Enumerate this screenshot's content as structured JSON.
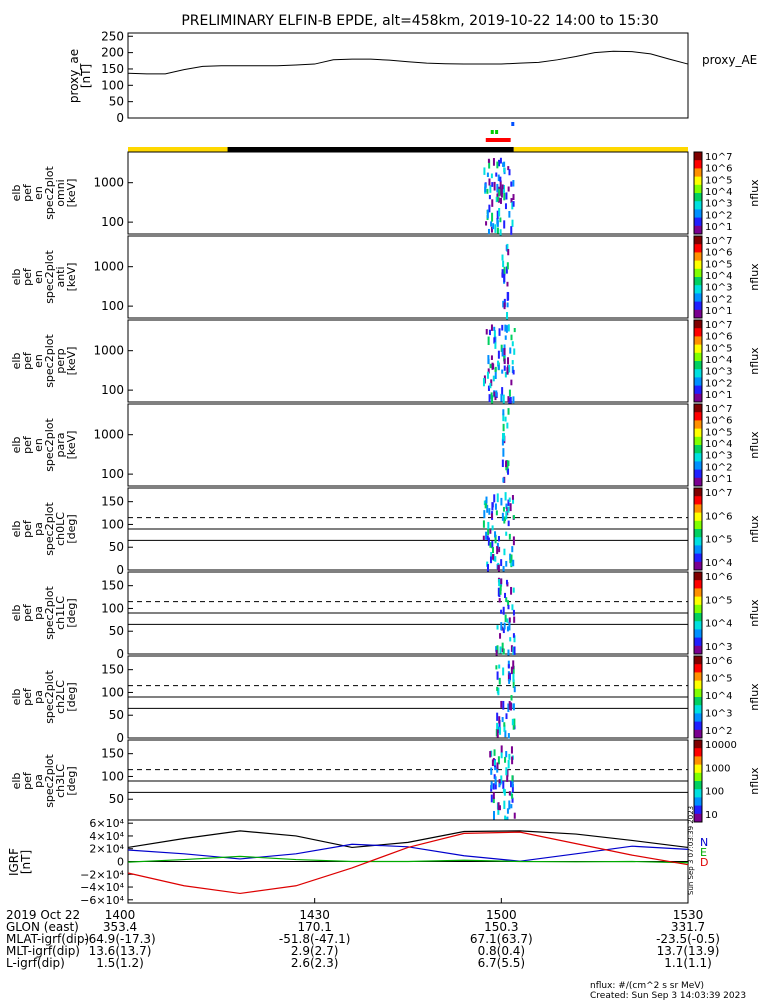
{
  "title": "PRELIMINARY ELFIN-B EPDE, alt=458km, 2019-10-22 14:00 to 15:30",
  "colors": {
    "sci_zone_yellow": "#ffd800",
    "sci_zone_black": "#000000",
    "red": "#ff0000",
    "green": "#00cc00",
    "blue": "#0050ff",
    "bfield_black": "#000000",
    "bfield_blue": "#0000cc",
    "bfield_green": "#00aa00",
    "bfield_red": "#dd0000"
  },
  "x_axis": {
    "ticks": [
      "1400",
      "1430",
      "1500",
      "1530"
    ],
    "tick_minutes": [
      0,
      30,
      60,
      90
    ],
    "range_minutes": [
      0,
      90
    ]
  },
  "footer_rows": [
    {
      "label": "2019 Oct 22",
      "values": [
        "1400",
        "1430",
        "1500",
        "1530"
      ]
    },
    {
      "label": "GLON (east)",
      "values": [
        "353.4",
        "170.1",
        "150.3",
        "331.7"
      ]
    },
    {
      "label": "MLAT-igrf(dip)",
      "values": [
        "-64.9(-17.3)",
        "-51.8(-47.1)",
        "67.1(63.7)",
        "-23.5(-0.5)"
      ]
    },
    {
      "label": "MLT-igrf(dip)",
      "values": [
        "13.6(13.7)",
        "2.9(2.7)",
        "0.8(0.4)",
        "13.7(13.9)"
      ]
    },
    {
      "label": "L-igrf(dip)",
      "values": [
        "1.5(1.2)",
        "2.6(2.3)",
        "6.7(5.5)",
        "1.1(1.1)"
      ]
    }
  ],
  "footnote": {
    "units": "nflux: #/(cm^2 s sr MeV)",
    "created": "Created: Sun Sep  3 14:03:39 2023",
    "side_stamp": "Sun Sep  3 07:03:39 2023"
  },
  "chart_data": [
    {
      "type": "line",
      "panel": "proxy_ae",
      "ylabel_lines": [
        "proxy_ae",
        "[nT]"
      ],
      "legend": "proxy_AE",
      "ylim": [
        0,
        260
      ],
      "yticks": [
        "250",
        "200",
        "150",
        "100",
        "50",
        "0"
      ],
      "ytick_values": [
        250,
        200,
        150,
        100,
        50,
        0
      ],
      "x": [
        0,
        3,
        6,
        9,
        12,
        15,
        18,
        21,
        24,
        27,
        30,
        33,
        36,
        39,
        42,
        45,
        48,
        51,
        54,
        57,
        60,
        63,
        66,
        69,
        72,
        75,
        78,
        81,
        84,
        87,
        90
      ],
      "values": [
        137,
        135,
        135,
        148,
        158,
        160,
        160,
        160,
        160,
        162,
        165,
        178,
        180,
        180,
        177,
        172,
        168,
        166,
        165,
        165,
        165,
        168,
        170,
        178,
        188,
        200,
        204,
        203,
        196,
        180,
        165
      ]
    },
    {
      "type": "spectrogram",
      "panel": "en_spec_omni",
      "ylabel_lines": [
        "elb",
        "pef",
        "en",
        "spec2plot",
        "omni",
        "[keV]"
      ],
      "yscale": "log",
      "ylim": [
        50,
        6000
      ],
      "yticks": [
        "1000",
        "100"
      ],
      "colorbar": {
        "label": "nflux",
        "ticks": [
          "10^7",
          "10^6",
          "10^5",
          "10^4",
          "10^3",
          "10^2",
          "10^1"
        ]
      },
      "activity_minutes": [
        57,
        62
      ]
    },
    {
      "type": "spectrogram",
      "panel": "en_spec_anti",
      "ylabel_lines": [
        "elb",
        "pef",
        "en",
        "spec2plot",
        "anti",
        "[keV]"
      ],
      "yscale": "log",
      "ylim": [
        50,
        6000
      ],
      "yticks": [
        "1000",
        "100"
      ],
      "colorbar": {
        "label": "nflux",
        "ticks": [
          "10^7",
          "10^6",
          "10^5",
          "10^4",
          "10^3",
          "10^2",
          "10^1"
        ]
      },
      "activity_minutes": [
        60,
        61
      ]
    },
    {
      "type": "spectrogram",
      "panel": "en_spec_perp",
      "ylabel_lines": [
        "elb",
        "pef",
        "en",
        "spec2plot",
        "perp",
        "[keV]"
      ],
      "yscale": "log",
      "ylim": [
        50,
        6000
      ],
      "yticks": [
        "1000",
        "100"
      ],
      "colorbar": {
        "label": "nflux",
        "ticks": [
          "10^7",
          "10^6",
          "10^5",
          "10^4",
          "10^3",
          "10^2",
          "10^1"
        ]
      },
      "activity_minutes": [
        57,
        62
      ]
    },
    {
      "type": "spectrogram",
      "panel": "en_spec_para",
      "ylabel_lines": [
        "elb",
        "pef",
        "en",
        "spec2plot",
        "para",
        "[keV]"
      ],
      "yscale": "log",
      "ylim": [
        50,
        6000
      ],
      "yticks": [
        "1000",
        "100"
      ],
      "colorbar": {
        "label": "nflux",
        "ticks": [
          "10^7",
          "10^6",
          "10^5",
          "10^4",
          "10^3",
          "10^2",
          "10^1"
        ]
      },
      "activity_minutes": [
        60,
        61
      ]
    },
    {
      "type": "spectrogram",
      "panel": "pa_spec_ch0",
      "ylabel_lines": [
        "elb",
        "pef",
        "pa",
        "spec2plot",
        "ch0LC",
        "[deg]"
      ],
      "ylim": [
        0,
        180
      ],
      "yticks": [
        "150",
        "100",
        "50",
        "0"
      ],
      "ref_lines_deg": {
        "dashed": 115,
        "solid": [
          90,
          65
        ]
      },
      "colorbar": {
        "label": "nflux",
        "ticks": [
          "10^7",
          "10^6",
          "10^5",
          "10^4"
        ]
      },
      "activity_minutes": [
        57,
        62
      ]
    },
    {
      "type": "spectrogram",
      "panel": "pa_spec_ch1",
      "ylabel_lines": [
        "elb",
        "pef",
        "pa",
        "spec2plot",
        "ch1LC",
        "[deg]"
      ],
      "ylim": [
        0,
        180
      ],
      "yticks": [
        "150",
        "100",
        "50",
        "0"
      ],
      "ref_lines_deg": {
        "dashed": 115,
        "solid": [
          90,
          65
        ]
      },
      "colorbar": {
        "label": "nflux",
        "ticks": [
          "10^6",
          "10^5",
          "10^4",
          "10^3"
        ]
      },
      "activity_minutes": [
        59,
        62
      ]
    },
    {
      "type": "spectrogram",
      "panel": "pa_spec_ch2",
      "ylabel_lines": [
        "elb",
        "pef",
        "pa",
        "spec2plot",
        "ch2LC",
        "[deg]"
      ],
      "ylim": [
        0,
        180
      ],
      "yticks": [
        "150",
        "100",
        "50",
        "0"
      ],
      "ref_lines_deg": {
        "dashed": 115,
        "solid": [
          90,
          65
        ]
      },
      "colorbar": {
        "label": "nflux",
        "ticks": [
          "10^6",
          "10^5",
          "10^4",
          "10^3",
          "10^2"
        ]
      },
      "activity_minutes": [
        59,
        62
      ]
    },
    {
      "type": "spectrogram",
      "panel": "pa_spec_ch3",
      "ylabel_lines": [
        "elb",
        "pef",
        "pa",
        "spec2plot",
        "ch3LC",
        "[deg]"
      ],
      "ylim": [
        0,
        180
      ],
      "yticks": [
        "150",
        "100",
        "50"
      ],
      "ref_lines_deg": {
        "dashed": 115,
        "solid": [
          90,
          65
        ]
      },
      "colorbar": {
        "label": "nflux",
        "ticks": [
          "10000",
          "1000",
          "100",
          "10"
        ]
      },
      "activity_minutes": [
        58,
        62
      ]
    },
    {
      "type": "line",
      "panel": "igrf_field",
      "ylabel_lines": [
        "IGRF",
        "[nT]"
      ],
      "ylim": [
        -65000,
        65000
      ],
      "yticks": [
        "6×10⁴",
        "4×10⁴",
        "2×10⁴",
        "0",
        "−2×10⁴",
        "−4×10⁴",
        "−6×10⁴"
      ],
      "ytick_values": [
        60000,
        40000,
        20000,
        0,
        -20000,
        -40000,
        -60000
      ],
      "legend": [
        "N",
        "E",
        "D"
      ],
      "x": [
        0,
        9,
        18,
        27,
        36,
        45,
        54,
        63,
        72,
        81,
        90
      ],
      "series": [
        {
          "color": "#000000",
          "values": [
            22000,
            36000,
            48000,
            40000,
            22000,
            30000,
            47000,
            48000,
            43000,
            33000,
            22000
          ]
        },
        {
          "color": "#0000cc",
          "name": "N",
          "values": [
            18000,
            12000,
            4000,
            12000,
            27000,
            23000,
            9000,
            500,
            12000,
            24000,
            19000
          ]
        },
        {
          "color": "#00aa00",
          "name": "E",
          "values": [
            -1000,
            3000,
            8000,
            3000,
            0,
            0,
            2000,
            0,
            -500,
            0,
            -2000
          ]
        },
        {
          "color": "#dd0000",
          "name": "D",
          "values": [
            -18000,
            -38000,
            -50000,
            -38000,
            -10000,
            22000,
            44000,
            46000,
            28000,
            10000,
            -5000
          ]
        }
      ]
    }
  ]
}
